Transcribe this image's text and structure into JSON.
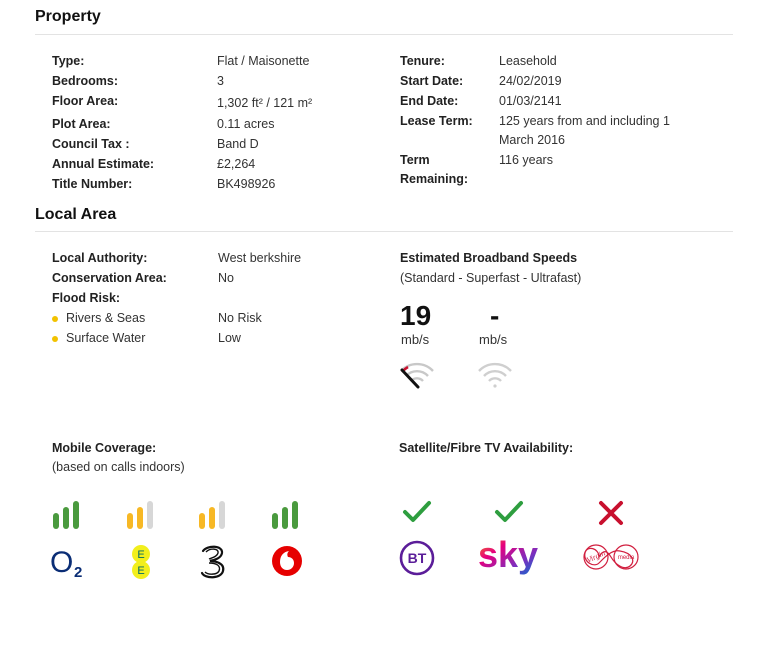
{
  "property": {
    "heading": "Property",
    "left": [
      {
        "label": "Type:",
        "value": "Flat / Maisonette"
      },
      {
        "label": "Bedrooms:",
        "value": "3"
      },
      {
        "label": "Floor Area:",
        "value": "1,302 ft² / 121 m²"
      },
      {
        "label": "Plot Area:",
        "value": "0.11 acres"
      },
      {
        "label": "Council Tax :",
        "value": "Band D"
      },
      {
        "label": "Annual Estimate:",
        "value": "£2,264"
      },
      {
        "label": "Title Number:",
        "value": "BK498926"
      }
    ],
    "right": [
      {
        "label": "Tenure:",
        "value": "Leasehold"
      },
      {
        "label": "Start Date:",
        "value": "24/02/2019"
      },
      {
        "label": "End Date:",
        "value": "01/03/2141"
      },
      {
        "label": "Lease Term:",
        "value_line1": "125 years from and including 1",
        "value_line2": "March 2016"
      },
      {
        "label_line1": "Term",
        "label_line2": "Remaining:",
        "value": "116 years"
      }
    ]
  },
  "local_area": {
    "heading": "Local Area",
    "local_authority": {
      "label": "Local Authority:",
      "value": "West berkshire"
    },
    "conservation_area": {
      "label": "Conservation Area:",
      "value": "No"
    },
    "flood_risk": {
      "label": "Flood Risk:",
      "items": [
        {
          "label": "Rivers & Seas",
          "value": "No Risk"
        },
        {
          "label": "Surface Water",
          "value": "Low"
        }
      ]
    },
    "broadband": {
      "title": "Estimated Broadband Speeds",
      "subtitle": "(Standard - Superfast - Ultrafast)",
      "speeds": [
        {
          "value": "19",
          "unit": "mb/s",
          "gauge_level": 0.35
        },
        {
          "value": "-",
          "unit": "mb/s",
          "gauge_level": 0
        }
      ]
    }
  },
  "mobile": {
    "title": "Mobile Coverage:",
    "subtitle": "(based on calls indoors)",
    "operators": [
      {
        "name": "O2",
        "icon": "o2-logo-icon",
        "bars": 3
      },
      {
        "name": "EE",
        "icon": "ee-logo-icon",
        "bars": 2
      },
      {
        "name": "Three",
        "icon": "three-logo-icon",
        "bars": 2
      },
      {
        "name": "Vodafone",
        "icon": "vodafone-logo-icon",
        "bars": 3
      }
    ]
  },
  "tv": {
    "title": "Satellite/Fibre TV Availability:",
    "providers": [
      {
        "name": "BT",
        "available": true
      },
      {
        "name": "sky",
        "available": true
      },
      {
        "name": "Virgin media",
        "available": false
      }
    ]
  },
  "colors": {
    "bar_green": "#4a9a3e",
    "bar_yellow": "#f7b825",
    "bar_grey": "#d7d7d7",
    "check_green": "#2e9e3f",
    "cross_red": "#c8102e",
    "dot_yellow": "#f2c200",
    "o2_blue": "#0a2d75",
    "ee_yellow": "#f2ef1c",
    "vodafone_red": "#e60000",
    "bt_purple": "#5b1d99",
    "virgin_red": "#d11f3f"
  }
}
